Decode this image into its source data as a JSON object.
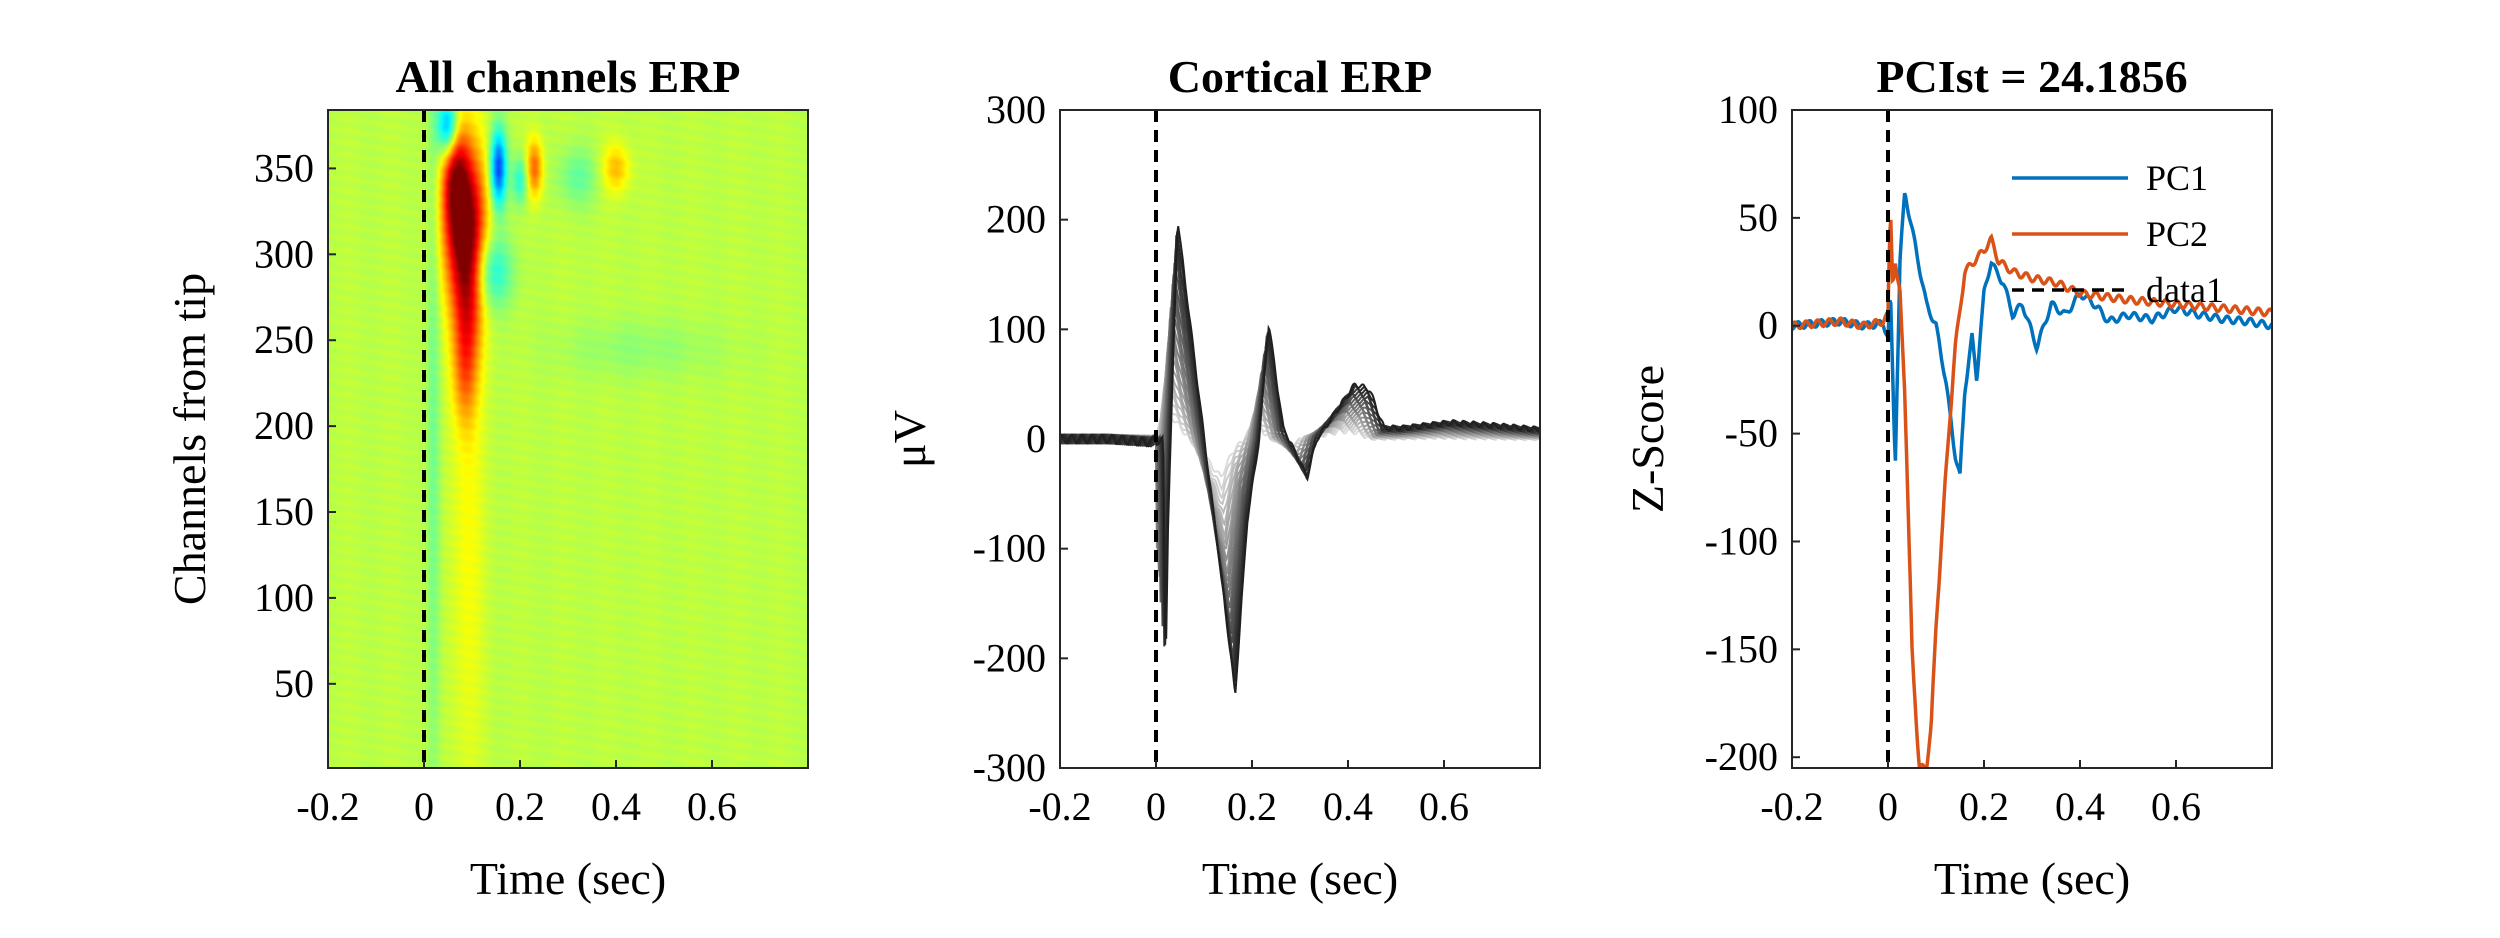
{
  "chart_data": [
    {
      "type": "heatmap",
      "title": "All channels ERP",
      "xlabel": "Time (sec)",
      "ylabel": "Channels from tip",
      "xlim": [
        -0.2,
        0.8
      ],
      "ylim": [
        1,
        384
      ],
      "xticks": [
        "-0.2",
        "0",
        "0.2",
        "0.4",
        "0.6"
      ],
      "yticks": [
        "50",
        "100",
        "150",
        "200",
        "250",
        "300",
        "350"
      ],
      "stim_line_x": 0,
      "colormap": "jet",
      "background_color": "#9ee57a",
      "blobs": [
        {
          "t": 0.085,
          "ch": 318,
          "st": 0.03,
          "sc": 32,
          "v": 1.0
        },
        {
          "t": 0.065,
          "ch": 345,
          "st": 0.018,
          "sc": 22,
          "v": 0.55
        },
        {
          "t": 0.09,
          "ch": 270,
          "st": 0.022,
          "sc": 28,
          "v": 0.45
        },
        {
          "t": 0.085,
          "ch": 230,
          "st": 0.018,
          "sc": 22,
          "v": 0.3
        },
        {
          "t": 0.09,
          "ch": 150,
          "st": 0.025,
          "sc": 120,
          "v": 0.14
        },
        {
          "t": 0.05,
          "ch": 374,
          "st": 0.015,
          "sc": 12,
          "v": -0.75
        },
        {
          "t": 0.155,
          "ch": 350,
          "st": 0.012,
          "sc": 16,
          "v": -0.85
        },
        {
          "t": 0.14,
          "ch": 290,
          "st": 0.03,
          "sc": 15,
          "v": -0.4
        },
        {
          "t": 0.02,
          "ch": 200,
          "st": 0.01,
          "sc": 180,
          "v": -0.18
        },
        {
          "t": 0.23,
          "ch": 350,
          "st": 0.012,
          "sc": 12,
          "v": 0.5
        },
        {
          "t": 0.4,
          "ch": 350,
          "st": 0.02,
          "sc": 10,
          "v": 0.3
        },
        {
          "t": 0.2,
          "ch": 343,
          "st": 0.012,
          "sc": 10,
          "v": -0.35
        },
        {
          "t": 0.32,
          "ch": 345,
          "st": 0.03,
          "sc": 12,
          "v": -0.2
        },
        {
          "t": 0.45,
          "ch": 245,
          "st": 0.12,
          "sc": 12,
          "v": -0.1
        }
      ]
    },
    {
      "type": "line",
      "title": "Cortical ERP",
      "xlabel": "Time (sec)",
      "ylabel": "μV",
      "xlim": [
        -0.2,
        0.8
      ],
      "ylim": [
        -300,
        300
      ],
      "xticks": [
        "-0.2",
        "0",
        "0.2",
        "0.4",
        "0.6"
      ],
      "yticks": [
        "-300",
        "-200",
        "-100",
        "0",
        "100",
        "200",
        "300"
      ],
      "stim_line_x": 0,
      "series_color_range": [
        "#dcdcdc",
        "#202020"
      ],
      "series_count": 24,
      "template_x": [
        -0.2,
        -0.1,
        -0.01,
        0,
        0.005,
        0.01,
        0.03,
        0.08,
        0.12,
        0.15,
        0.175,
        0.2,
        0.22,
        0.25,
        0.3,
        0.32,
        0.36,
        0.4,
        0.43,
        0.46,
        0.5,
        0.6,
        0.7,
        0.8
      ],
      "template_y": [
        0,
        0,
        -3,
        0,
        -210,
        -80,
        200,
        20,
        -120,
        -233,
        -75,
        0,
        105,
        10,
        -35,
        0,
        25,
        50,
        45,
        10,
        10,
        15,
        12,
        8
      ]
    },
    {
      "type": "line",
      "title": "PCIst = 24.1856",
      "xlabel": "Time (sec)",
      "ylabel": "Z-Score",
      "xlim": [
        -0.2,
        0.8
      ],
      "ylim": [
        -205,
        100
      ],
      "xticks": [
        "-0.2",
        "0",
        "0.2",
        "0.4",
        "0.6"
      ],
      "yticks": [
        "-200",
        "-150",
        "-100",
        "-50",
        "0",
        "50",
        "100"
      ],
      "stim_line_x": 0,
      "legend": {
        "position": "top-right"
      },
      "series": [
        {
          "name": "PC1",
          "color": "#0072bd",
          "x": [
            -0.2,
            -0.1,
            -0.05,
            -0.01,
            0,
            0.005,
            0.015,
            0.025,
            0.035,
            0.05,
            0.08,
            0.1,
            0.12,
            0.14,
            0.15,
            0.16,
            0.175,
            0.185,
            0.19,
            0.2,
            0.215,
            0.225,
            0.24,
            0.26,
            0.28,
            0.31,
            0.34,
            0.37,
            0.4,
            0.43,
            0.46,
            0.5,
            0.55,
            0.6,
            0.65,
            0.7,
            0.75,
            0.8
          ],
          "y": [
            0,
            2,
            0,
            1,
            -5,
            15,
            -65,
            30,
            62,
            45,
            10,
            0,
            -25,
            -60,
            -70,
            -30,
            -5,
            -25,
            -10,
            15,
            30,
            25,
            20,
            5,
            10,
            -10,
            10,
            5,
            15,
            10,
            2,
            5,
            3,
            8,
            5,
            3,
            2,
            0
          ]
        },
        {
          "name": "PC2",
          "color": "#d95319",
          "x": [
            -0.2,
            -0.1,
            -0.05,
            -0.01,
            0,
            0.005,
            0.01,
            0.015,
            0.02,
            0.025,
            0.035,
            0.05,
            0.065,
            0.08,
            0.09,
            0.1,
            0.12,
            0.14,
            0.16,
            0.18,
            0.2,
            0.215,
            0.23,
            0.26,
            0.3,
            0.35,
            0.4,
            0.5,
            0.6,
            0.7,
            0.8
          ],
          "y": [
            0,
            2,
            0,
            2,
            5,
            55,
            20,
            30,
            20,
            15,
            -30,
            -150,
            -205,
            -205,
            -185,
            -140,
            -70,
            -10,
            25,
            30,
            35,
            40,
            30,
            25,
            22,
            20,
            15,
            12,
            10,
            8,
            6
          ]
        }
      ],
      "extra_legend_entry": {
        "name": "data1",
        "color": "#000000",
        "style": "dashed"
      }
    }
  ]
}
